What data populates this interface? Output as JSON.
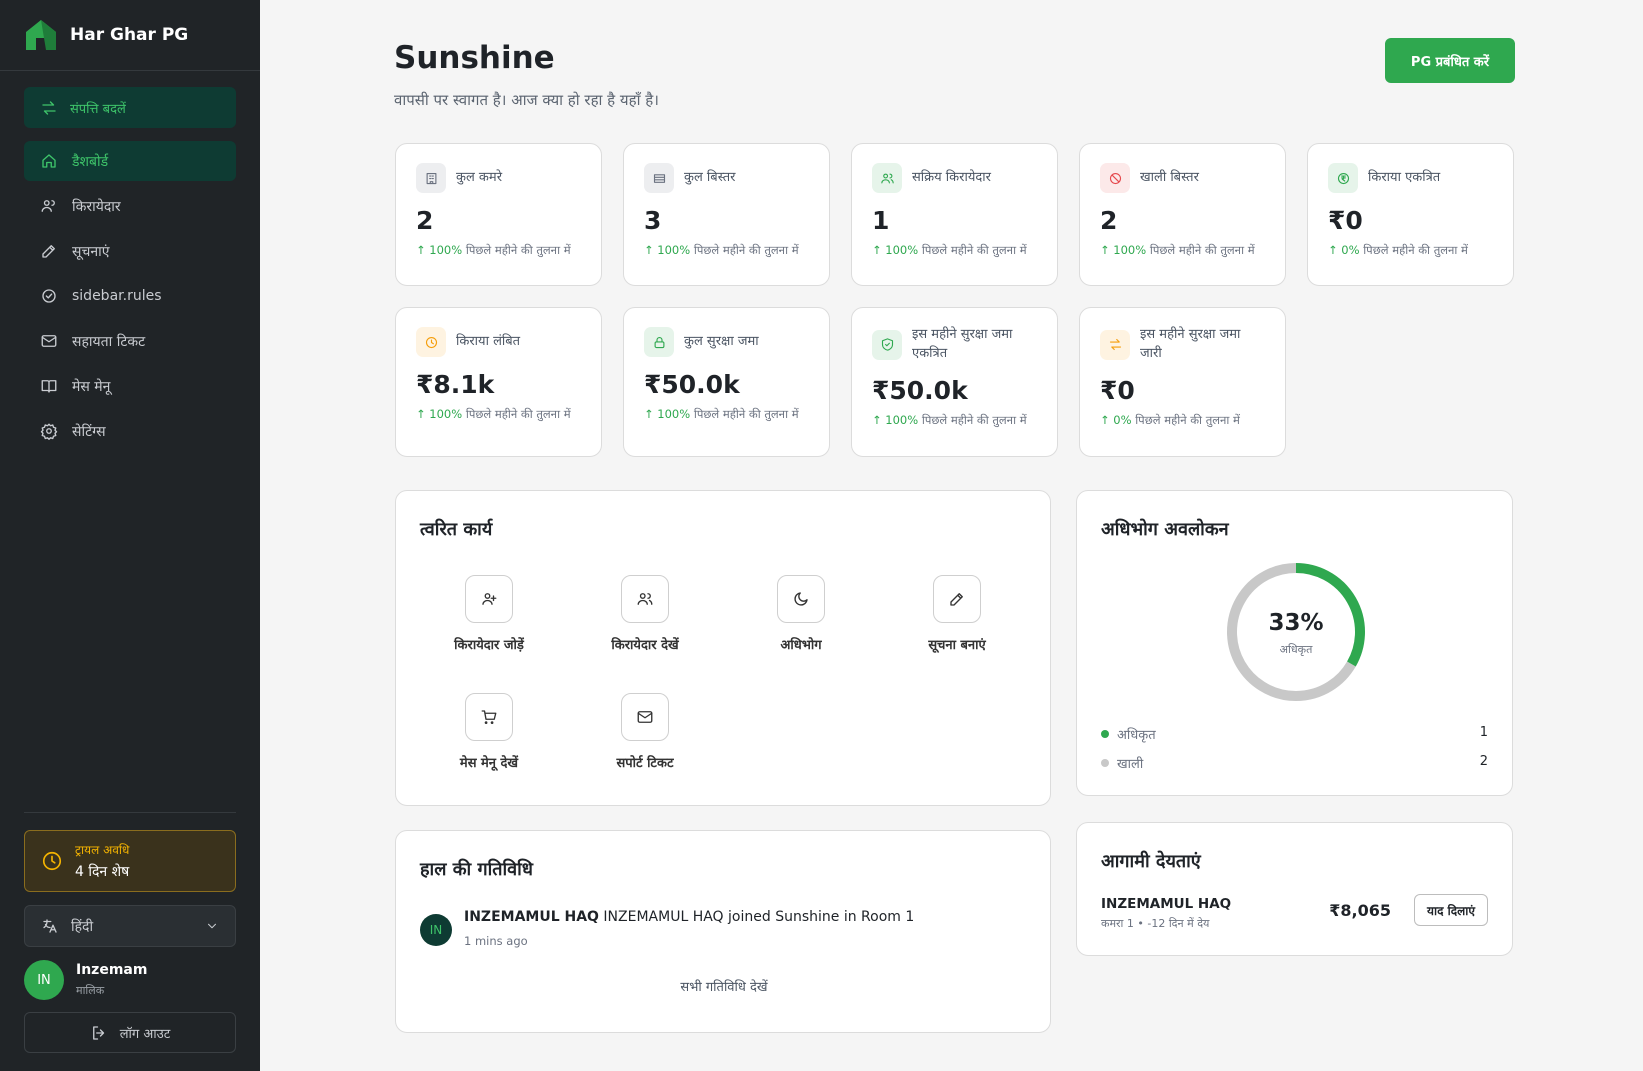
{
  "sidebar": {
    "brand": "Har Ghar PG",
    "switch_property": "संपत्ति बदलें",
    "nav": [
      "डैशबोर्ड",
      "किरायेदार",
      "सूचनाएं",
      "sidebar.rules",
      "सहायता टिकट",
      "मेस मेनू",
      "सेटिंग्स"
    ],
    "trial": {
      "title": "ट्रायल अवधि",
      "remaining": "4 दिन शेष"
    },
    "language": "हिंदी",
    "user": {
      "initials": "IN",
      "name": "Inzemam",
      "role": "मालिक"
    },
    "logout": "लॉग आउट"
  },
  "header": {
    "title": "Sunshine",
    "subtitle": "वापसी पर स्वागत है। आज क्या हो रहा है यहाँ है।",
    "manage_button": "PG प्रबंधित करें"
  },
  "stats": [
    {
      "label": "कुल कमरे",
      "value": "2",
      "change": "100%",
      "note": "पिछले महीने की तुलना में",
      "color": "#6b7280"
    },
    {
      "label": "कुल बिस्तर",
      "value": "3",
      "change": "100%",
      "note": "पिछले महीने की तुलना में",
      "color": "#6b7280"
    },
    {
      "label": "सक्रिय किरायेदार",
      "value": "1",
      "change": "100%",
      "note": "पिछले महीने की तुलना में",
      "color": "#2fa84f"
    },
    {
      "label": "खाली बिस्तर",
      "value": "2",
      "change": "100%",
      "note": "पिछले महीने की तुलना में",
      "color": "#e5484d"
    },
    {
      "label": "किराया एकत्रित",
      "value": "₹0",
      "change": "0%",
      "note": "पिछले महीने की तुलना में",
      "color": "#2fa84f"
    },
    {
      "label": "किराया लंबित",
      "value": "₹8.1k",
      "change": "100%",
      "note": "पिछले महीने की तुलना में",
      "color": "#f59e0b"
    },
    {
      "label": "कुल सुरक्षा जमा",
      "value": "₹50.0k",
      "change": "100%",
      "note": "पिछले महीने की तुलना में",
      "color": "#2fa84f"
    },
    {
      "label": "इस महीने सुरक्षा जमा एकत्रित",
      "value": "₹50.0k",
      "change": "100%",
      "note": "पिछले महीने की तुलना में",
      "color": "#2fa84f"
    },
    {
      "label": "इस महीने सुरक्षा जमा जारी",
      "value": "₹0",
      "change": "0%",
      "note": "पिछले महीने की तुलना में",
      "color": "#f59e0b"
    }
  ],
  "quick_actions": {
    "title": "त्वरित कार्य",
    "items": [
      "किरायेदार जोड़ें",
      "किरायेदार देखें",
      "अधिभोग",
      "सूचना बनाएं",
      "मेस मेनू देखें",
      "सपोर्ट टिकट"
    ]
  },
  "activity": {
    "title": "हाल की गतिविधि",
    "items": [
      {
        "initials": "IN",
        "name": "INZEMAMUL HAQ",
        "text": "INZEMAMUL HAQ joined Sunshine in Room 1",
        "time": "1 mins ago"
      }
    ],
    "view_all": "सभी गतिविधि देखें"
  },
  "occupancy": {
    "title": "अधिभोग अवलोकन",
    "percent": "33%",
    "center_label": "अधिकृत",
    "legend": [
      {
        "name": "अधिकृत",
        "value": 1,
        "color": "#2fa84f"
      },
      {
        "name": "खाली",
        "value": 2,
        "color": "#c8c8c8"
      }
    ]
  },
  "dues": {
    "title": "आगामी देयताएं",
    "items": [
      {
        "name": "INZEMAMUL HAQ",
        "room": "कमरा 1",
        "due": "-12 दिन में देय",
        "amount": "₹8,065",
        "action": "याद दिलाएं"
      }
    ]
  }
}
